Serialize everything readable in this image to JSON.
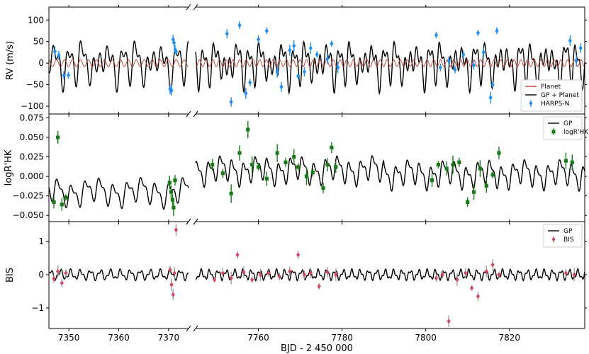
{
  "figure": {
    "xlabel": "BJD - 2 450 000",
    "segments": [
      {
        "xlim": [
          7346,
          7374
        ],
        "ticks": [
          7350,
          7360,
          7370
        ]
      },
      {
        "xlim": [
          7745,
          7838
        ],
        "ticks": [
          7760,
          7780,
          7800,
          7820
        ]
      }
    ],
    "colors": {
      "gp": "#000000",
      "planet": "#c0392b",
      "harps": "#1f8ef1",
      "logrhk": "#1a7a1a",
      "bis": "#d4475e",
      "error": "#a0a0a0"
    }
  },
  "chart_data": [
    {
      "type": "scatter",
      "ylabel": "RV (m/s)",
      "ylim": [
        -118,
        130
      ],
      "yticks": [
        -100,
        -50,
        0,
        50,
        100
      ],
      "legend": {
        "placement": "bottom-right",
        "entries": [
          "Planet",
          "GP + Planet",
          "HARPS-N"
        ]
      },
      "series": [
        {
          "name": "HARPS-N",
          "marker": "diamond",
          "color": "#1f8ef1",
          "x": [
            7347.2,
            7348.0,
            7349.0,
            7349.9,
            7370.3,
            7370.6,
            7370.9,
            7371.1,
            7371.3,
            7371.5,
            7752.5,
            7753.5,
            7755.5,
            7757.0,
            7758.0,
            7760.0,
            7762.0,
            7764.5,
            7765.5,
            7767.5,
            7768.5,
            7769.5,
            7771.0,
            7772.5,
            7774.0,
            7776.5,
            7777.5,
            7779.0,
            7802.5,
            7803.5,
            7805.5,
            7807.0,
            7809.0,
            7811.5,
            7812.5,
            7813.8,
            7815.5,
            7816.0,
            7817.0,
            7834.5,
            7836.0,
            7837.0
          ],
          "y": [
            27,
            18,
            -28,
            -28,
            -60,
            -63,
            55,
            47,
            32,
            27,
            68,
            -90,
            88,
            -70,
            -45,
            55,
            75,
            -20,
            -55,
            30,
            40,
            -30,
            -20,
            35,
            20,
            10,
            45,
            -10,
            65,
            -10,
            5,
            -15,
            20,
            -5,
            70,
            25,
            -80,
            -50,
            75,
            52,
            5,
            35
          ]
        }
      ]
    },
    {
      "type": "scatter",
      "ylabel": "logR'HK",
      "ylim": [
        -0.058,
        0.08
      ],
      "yticks": [
        -0.05,
        -0.025,
        0.0,
        0.025,
        0.05,
        0.075
      ],
      "legend": {
        "placement": "top-right",
        "entries": [
          "GP",
          "logR'HK"
        ]
      },
      "series": [
        {
          "name": "logR'HK",
          "marker": "square",
          "color": "#1a7a1a",
          "x": [
            7347.0,
            7347.8,
            7348.6,
            7349.4,
            7370.2,
            7370.5,
            7370.8,
            7371.0,
            7371.3,
            7749.0,
            7751.5,
            7753.5,
            7755.5,
            7757.5,
            7758.5,
            7760.0,
            7762.0,
            7764.5,
            7766.5,
            7768.5,
            7769.5,
            7771.5,
            7773.0,
            7775.5,
            7776.5,
            7777.5,
            7778.5,
            7801.5,
            7803.0,
            7805.0,
            7806.5,
            7808.0,
            7810.0,
            7811.5,
            7813.0,
            7814.5,
            7816.0,
            7817.5,
            7833.5,
            7835.0
          ],
          "y": [
            -0.033,
            0.05,
            -0.036,
            -0.027,
            -0.008,
            -0.02,
            -0.03,
            -0.04,
            -0.005,
            0.015,
            0.004,
            -0.022,
            0.03,
            0.06,
            0.015,
            0.012,
            -0.003,
            0.03,
            0.018,
            0.025,
            0.012,
            0.0,
            0.005,
            -0.015,
            0.015,
            0.037,
            0.012,
            -0.005,
            0.015,
            0.01,
            0.015,
            0.018,
            -0.033,
            -0.02,
            0.01,
            -0.012,
            0.002,
            0.03,
            0.02,
            0.018
          ]
        }
      ]
    },
    {
      "type": "scatter",
      "ylabel": "BIS",
      "ylim": [
        -1.62,
        1.6
      ],
      "yticks": [
        -1,
        0,
        1
      ],
      "legend": {
        "placement": "top-right",
        "entries": [
          "GP",
          "BIS"
        ]
      },
      "series": [
        {
          "name": "BIS",
          "marker": "diamond",
          "color": "#d4475e",
          "x": [
            7347.0,
            7347.8,
            7348.6,
            7349.4,
            7370.3,
            7370.6,
            7370.9,
            7371.2,
            7371.5,
            7749.5,
            7751.5,
            7753.5,
            7755.0,
            7756.5,
            7758.5,
            7760.5,
            7762.5,
            7765.0,
            7767.5,
            7769.5,
            7771.0,
            7772.5,
            7774.5,
            7776.5,
            7778.5,
            7802.5,
            7804.0,
            7805.5,
            7807.5,
            7809.5,
            7811.0,
            7812.5,
            7814.5,
            7816.0,
            7817.5,
            7833.5,
            7835.5
          ],
          "y": [
            -0.12,
            0.1,
            -0.25,
            0.05,
            0.15,
            -0.3,
            -0.6,
            0.05,
            1.35,
            -0.15,
            0.05,
            -0.1,
            0.6,
            0.08,
            -0.15,
            0.0,
            0.05,
            -0.05,
            0.1,
            0.6,
            0.0,
            0.05,
            -0.35,
            0.08,
            0.0,
            -0.1,
            0.0,
            -1.4,
            -0.15,
            0.05,
            -0.4,
            -0.65,
            0.1,
            0.3,
            0.0,
            0.05,
            0.0
          ]
        }
      ]
    }
  ]
}
